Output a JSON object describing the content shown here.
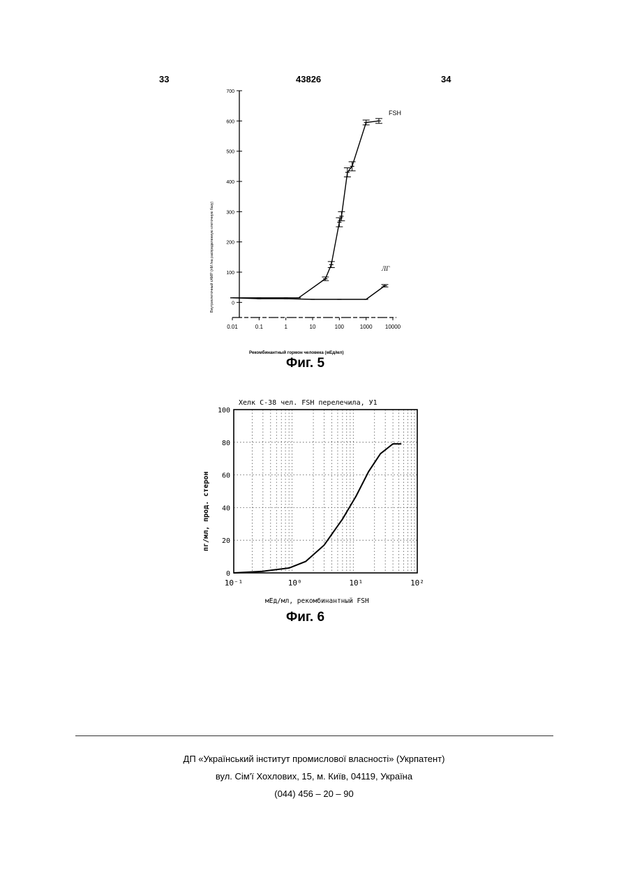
{
  "header": {
    "left": "33",
    "center": "43826",
    "right": "34"
  },
  "figure5": {
    "caption": "Фиг. 5",
    "ylabel": "Внутриклеточный cAMP (nM /на распределенную клеточную базу)",
    "xlabel": "Рекомбинантный гормон человека (мЕд/мл)",
    "series_labels": {
      "fsh": "FSH",
      "lh": "ЛГ"
    },
    "chart_data": {
      "type": "line",
      "x_scale": "log",
      "xlim": [
        0.01,
        10000
      ],
      "ylim": [
        -50,
        700
      ],
      "x_tick_labels": [
        "0.01",
        "0.1",
        "1",
        "10",
        "100",
        "1000",
        "10000"
      ],
      "y_tick_labels": [
        "0",
        "100",
        "200",
        "300",
        "400",
        "500",
        "600",
        "700"
      ],
      "series": [
        {
          "name": "FSH",
          "x": [
            0.01,
            0.1,
            1,
            3,
            30,
            50,
            100,
            120,
            200,
            300,
            1000,
            3000
          ],
          "y": [
            15,
            15,
            15,
            15,
            78,
            125,
            265,
            285,
            430,
            450,
            595,
            600
          ],
          "err": [
            0,
            0,
            0,
            0,
            6,
            10,
            15,
            15,
            15,
            15,
            8,
            8
          ]
        },
        {
          "name": "ЛГ",
          "x": [
            0.01,
            0.1,
            1,
            10,
            100,
            1000,
            5000
          ],
          "y": [
            15,
            12,
            12,
            10,
            10,
            10,
            55
          ],
          "err": [
            0,
            0,
            0,
            0,
            0,
            0,
            4
          ]
        }
      ]
    }
  },
  "figure6": {
    "caption": "Фиг. 6",
    "top_label": "Хелк C-38 чел. FSH перелечила, У1",
    "ylabel": "пг/мл, прод. стерон",
    "xlabel": "мЕд/мл, рекомбинантный FSH",
    "chart_data": {
      "type": "line",
      "x_scale": "log",
      "xlim": [
        0.1,
        100
      ],
      "ylim": [
        0,
        100
      ],
      "x_tick_labels": [
        "10⁻¹",
        "10⁰",
        "10¹",
        "10²"
      ],
      "y_tick_labels": [
        "0",
        "20",
        "40",
        "60",
        "80",
        "100"
      ],
      "grid": true,
      "series": [
        {
          "name": "",
          "x": [
            0.1,
            0.3,
            0.8,
            1.5,
            3,
            6,
            10,
            16,
            25,
            40,
            55
          ],
          "y": [
            0,
            1,
            3,
            7,
            17,
            33,
            47,
            62,
            73,
            79,
            79
          ]
        }
      ]
    }
  },
  "footer": {
    "line1": "ДП «Український інститут промислової власності» (Укрпатент)",
    "line2": "вул. Сім'ї Хохлових, 15, м. Київ, 04119, Україна",
    "line3": "(044) 456 – 20 – 90"
  }
}
